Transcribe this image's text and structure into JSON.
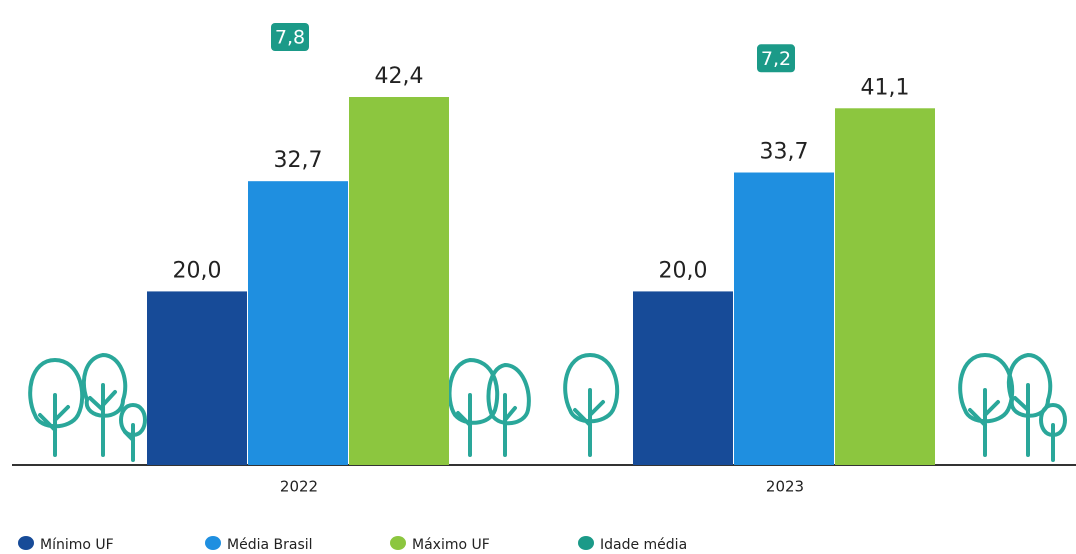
{
  "chart_data": {
    "type": "bar",
    "categories": [
      "2022",
      "2023"
    ],
    "series": [
      {
        "name": "Mínimo UF",
        "color": "#174b98",
        "values": [
          20.0,
          20.0
        ],
        "value_labels": [
          "20,0",
          "20,0"
        ]
      },
      {
        "name": "Média Brasil",
        "color": "#1f8fe0",
        "values": [
          32.7,
          33.7
        ],
        "value_labels": [
          "32,7",
          "33,7"
        ]
      },
      {
        "name": "Máximo UF",
        "color": "#8cc63f",
        "values": [
          42.4,
          41.1
        ],
        "value_labels": [
          "42,4",
          "41,1"
        ]
      },
      {
        "name": "Idade média",
        "color": "#1b9a88",
        "values": [
          7.8,
          7.2
        ],
        "value_labels": [
          "7,8",
          "7,2"
        ],
        "badge": true
      }
    ]
  }
}
